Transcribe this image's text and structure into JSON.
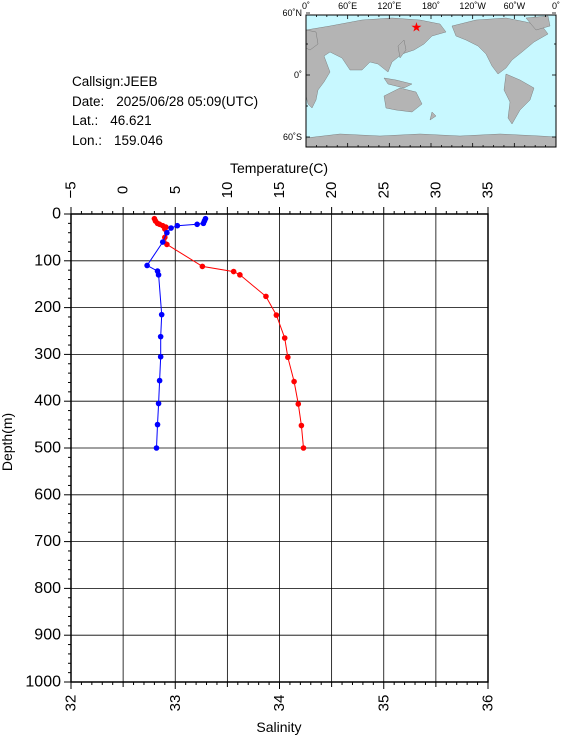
{
  "station": {
    "callsign_label": "Callsign:",
    "callsign": "JEEB",
    "date_label": "Date:",
    "date": "2025/06/28 05:09(UTC)",
    "lat_label": "Lat.:",
    "lat": "46.621",
    "lon_label": "Lon.:",
    "lon": "159.046"
  },
  "map": {
    "lon_ticks": [
      "0˚",
      "60˚E",
      "120˚E",
      "180˚",
      "120˚W",
      "60˚W",
      "0˚"
    ],
    "lat_ticks": [
      "60˚N",
      "0˚",
      "60˚S"
    ],
    "marker": {
      "lon": 159.046,
      "lat": 46.621
    },
    "colors": {
      "ocean": "#c8f8ff",
      "land": "#b4b4b4",
      "marker": "#ff0000"
    }
  },
  "chart_data": {
    "type": "line",
    "top_axis_label": "Temperature(C)",
    "bottom_axis_label": "Salinity",
    "y_axis_label": "Depth(m)",
    "temperature_range": [
      -5,
      35
    ],
    "temperature_ticks": [
      "−5",
      "0",
      "5",
      "10",
      "15",
      "20",
      "25",
      "30",
      "35"
    ],
    "salinity_range": [
      32,
      36
    ],
    "salinity_ticks": [
      "32",
      "33",
      "34",
      "35",
      "36"
    ],
    "depth_range": [
      0,
      1000
    ],
    "depth_ticks": [
      "0",
      "100",
      "200",
      "300",
      "400",
      "500",
      "600",
      "700",
      "800",
      "900",
      "1000"
    ],
    "grid": true,
    "series": [
      {
        "quantity": "temperature",
        "color": "#ff0000",
        "points": [
          {
            "x": 3.0,
            "depth": 10
          },
          {
            "x": 3.1,
            "depth": 15
          },
          {
            "x": 3.3,
            "depth": 20
          },
          {
            "x": 3.5,
            "depth": 22
          },
          {
            "x": 3.8,
            "depth": 25
          },
          {
            "x": 4.1,
            "depth": 28
          },
          {
            "x": 4.0,
            "depth": 32
          },
          {
            "x": 4.0,
            "depth": 50
          },
          {
            "x": 4.2,
            "depth": 65
          },
          {
            "x": 7.6,
            "depth": 112
          },
          {
            "x": 10.6,
            "depth": 123
          },
          {
            "x": 11.2,
            "depth": 130
          },
          {
            "x": 13.7,
            "depth": 176
          },
          {
            "x": 14.7,
            "depth": 216
          },
          {
            "x": 15.5,
            "depth": 265
          },
          {
            "x": 15.8,
            "depth": 306
          },
          {
            "x": 16.4,
            "depth": 358
          },
          {
            "x": 16.8,
            "depth": 406
          },
          {
            "x": 17.1,
            "depth": 452
          },
          {
            "x": 17.3,
            "depth": 500
          }
        ]
      },
      {
        "quantity": "salinity",
        "color": "#0000ff",
        "points": [
          {
            "x": 33.29,
            "depth": 10
          },
          {
            "x": 33.28,
            "depth": 15
          },
          {
            "x": 33.27,
            "depth": 20
          },
          {
            "x": 33.21,
            "depth": 22
          },
          {
            "x": 33.02,
            "depth": 25
          },
          {
            "x": 32.96,
            "depth": 30
          },
          {
            "x": 32.92,
            "depth": 40
          },
          {
            "x": 32.88,
            "depth": 60
          },
          {
            "x": 32.73,
            "depth": 110
          },
          {
            "x": 32.83,
            "depth": 122
          },
          {
            "x": 32.84,
            "depth": 130
          },
          {
            "x": 32.87,
            "depth": 215
          },
          {
            "x": 32.86,
            "depth": 262
          },
          {
            "x": 32.86,
            "depth": 305
          },
          {
            "x": 32.85,
            "depth": 356
          },
          {
            "x": 32.84,
            "depth": 405
          },
          {
            "x": 32.83,
            "depth": 450
          },
          {
            "x": 32.82,
            "depth": 500
          }
        ]
      }
    ]
  }
}
